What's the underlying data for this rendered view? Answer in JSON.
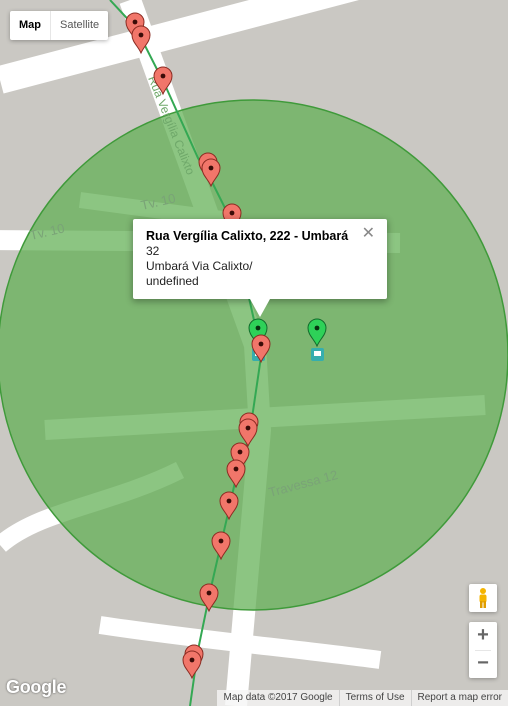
{
  "map_type": {
    "map_label": "Map",
    "satellite_label": "Satellite",
    "selected": "Map"
  },
  "streets": {
    "rua_label": "Rua Vergília Calixto",
    "tv10_a": "Tv. 10",
    "tv10_b": "Tv. 10",
    "travessa12": "Travessa 12"
  },
  "info_window": {
    "title": "Rua Vergília Calixto, 222 - Umbará",
    "line1": "32",
    "line2": "Umbará Via Calixto/",
    "line3": "undefined",
    "close_symbol": "✕"
  },
  "markers": {
    "red_count": 20,
    "green_count": 2,
    "bus_stop_icons": 2
  },
  "controls": {
    "zoom_in": "+",
    "zoom_out": "−",
    "pegman_icon": "pegman-icon"
  },
  "footer": {
    "logo": "Google",
    "map_data": "Map data ©2017 Google",
    "terms": "Terms of Use",
    "report": "Report a map error"
  },
  "colors": {
    "circle_fill": "#5fae52",
    "circle_stroke": "#3f9a3a",
    "route": "#34a853",
    "marker_red": "#f1766a",
    "marker_green": "#2ed158",
    "bus_stop": "#35aeae"
  }
}
